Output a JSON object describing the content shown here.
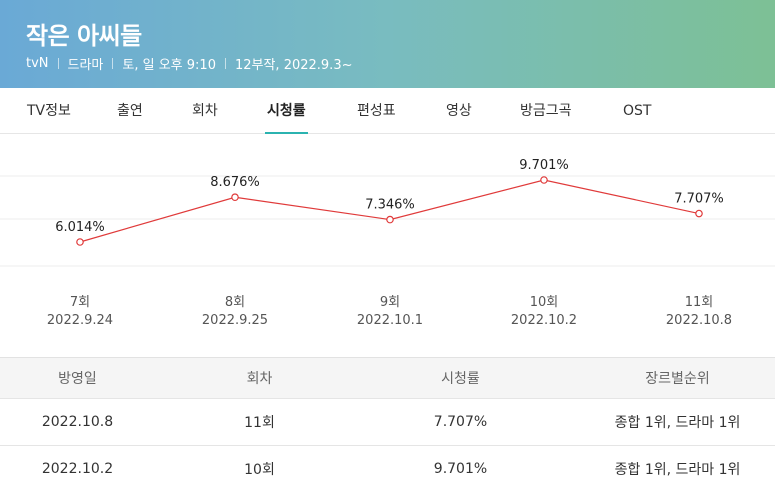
{
  "header": {
    "title": "작은 아씨들",
    "meta": [
      "tvN",
      "드라마",
      "토, 일 오후 9:10",
      "12부작, 2022.9.3~"
    ]
  },
  "tabs": [
    {
      "label": "TV정보",
      "active": false
    },
    {
      "label": "출연",
      "active": false
    },
    {
      "label": "회차",
      "active": false
    },
    {
      "label": "시청률",
      "active": true
    },
    {
      "label": "편성표",
      "active": false
    },
    {
      "label": "영상",
      "active": false
    },
    {
      "label": "방금그곡",
      "active": false
    },
    {
      "label": "OST",
      "active": false
    }
  ],
  "chart_data": {
    "type": "line",
    "categories": [
      "7회",
      "8회",
      "9회",
      "10회",
      "11회"
    ],
    "dates": [
      "2022.9.24",
      "2022.9.25",
      "2022.10.1",
      "2022.10.2",
      "2022.10.8"
    ],
    "values": [
      6.014,
      8.676,
      7.346,
      9.701,
      7.707
    ],
    "value_labels": [
      "6.014%",
      "8.676%",
      "7.346%",
      "9.701%",
      "7.707%"
    ],
    "line_color": "#e03a3a",
    "grid": true
  },
  "table": {
    "headers": [
      "방영일",
      "회차",
      "시청률",
      "장르별순위"
    ],
    "rows": [
      [
        "2022.10.8",
        "11회",
        "7.707%",
        "종합 1위, 드라마 1위"
      ],
      [
        "2022.10.2",
        "10회",
        "9.701%",
        "종합 1위, 드라마 1위"
      ]
    ]
  }
}
